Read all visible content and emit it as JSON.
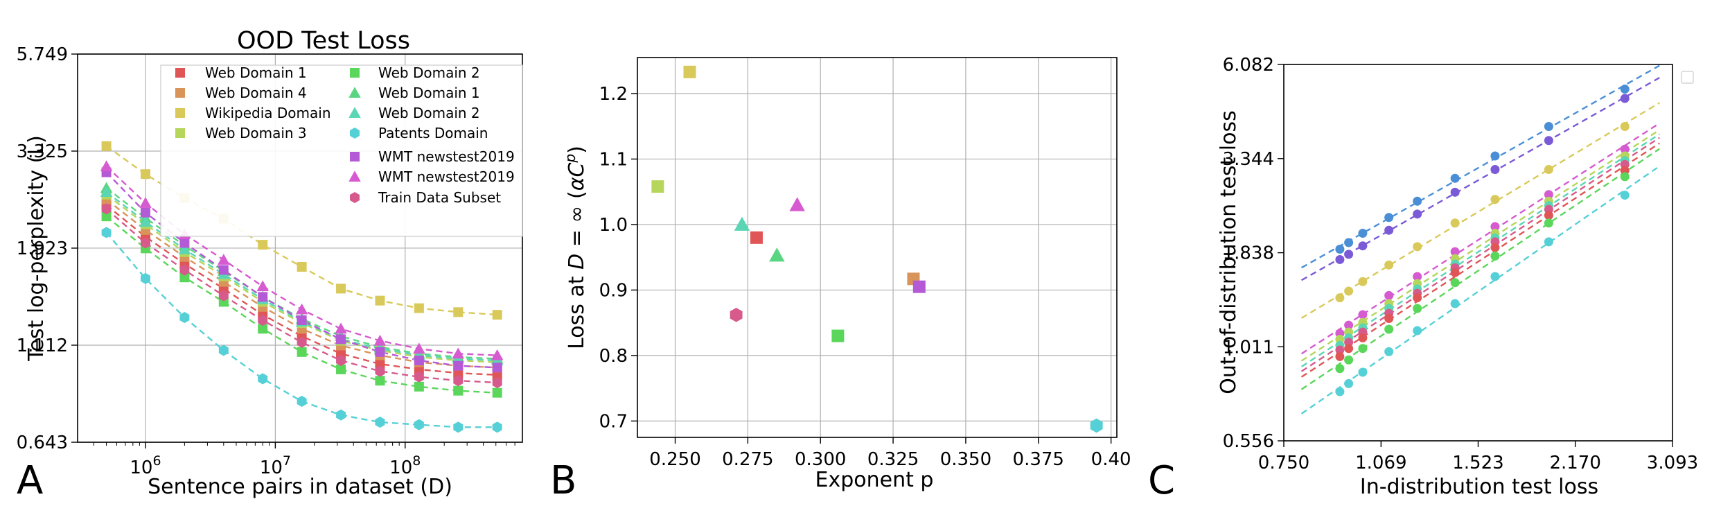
{
  "panel_letters": [
    "A",
    "B",
    "C"
  ],
  "chart_data": [
    {
      "panel": "A",
      "type": "line",
      "title": "OOD Test Loss",
      "xlabel": "Sentence pairs in dataset (D)",
      "ylabel": "Test log-perplexity (L)",
      "xscale": "log",
      "yscale": "log",
      "xlim": [
        300000,
        800000000
      ],
      "ylim": [
        0.643,
        5.749
      ],
      "xtick_values": [
        1000000,
        10000000,
        100000000
      ],
      "xtick_labels": [
        "10^6",
        "10^7",
        "10^8"
      ],
      "ytick_values": [
        0.643,
        1.112,
        1.923,
        3.325,
        5.749
      ],
      "ytick_labels": [
        "0.643",
        "1.112",
        "1.923",
        "3.325",
        "5.749"
      ],
      "grid": true,
      "legend_placement": "top-right",
      "x": [
        500000,
        1000000,
        2000000,
        4000000,
        8000000,
        16000000,
        32000000,
        64000000,
        128000000,
        256000000,
        512000000
      ],
      "series": [
        {
          "name": "Web Domain 1",
          "color": "#e05555",
          "marker": "square",
          "values": [
            2.45,
            2.05,
            1.76,
            1.53,
            1.32,
            1.17,
            1.06,
            1.0,
            0.97,
            0.95,
            0.94
          ]
        },
        {
          "name": "Web Domain 4",
          "color": "#d9945a",
          "marker": "square",
          "values": [
            2.53,
            2.13,
            1.83,
            1.59,
            1.38,
            1.22,
            1.11,
            1.05,
            1.01,
            0.99,
            0.98
          ]
        },
        {
          "name": "Wikipedia Domain",
          "color": "#d9c95a",
          "marker": "square",
          "values": [
            3.42,
            2.92,
            2.55,
            2.27,
            1.96,
            1.73,
            1.53,
            1.43,
            1.37,
            1.34,
            1.32
          ]
        },
        {
          "name": "Web Domain 3",
          "color": "#b5d65a",
          "marker": "square",
          "values": [
            2.6,
            2.2,
            1.88,
            1.64,
            1.42,
            1.26,
            1.14,
            1.08,
            1.04,
            1.02,
            1.01
          ]
        },
        {
          "name": "Web Domain 2",
          "color": "#5ad65a",
          "marker": "square",
          "values": [
            2.3,
            1.92,
            1.63,
            1.42,
            1.22,
            1.07,
            0.97,
            0.91,
            0.88,
            0.86,
            0.85
          ]
        },
        {
          "name": "Web Domain 1",
          "color": "#5ad682",
          "marker": "triangle",
          "values": [
            2.7,
            2.28,
            1.95,
            1.69,
            1.46,
            1.29,
            1.17,
            1.1,
            1.06,
            1.04,
            1.03
          ]
        },
        {
          "name": "Web Domain 2",
          "color": "#5ad6b5",
          "marker": "triangle",
          "values": [
            2.64,
            2.23,
            1.91,
            1.66,
            1.44,
            1.27,
            1.15,
            1.09,
            1.05,
            1.03,
            1.02
          ]
        },
        {
          "name": "Patents Domain",
          "color": "#55d0d6",
          "marker": "hexagon",
          "values": [
            2.1,
            1.62,
            1.3,
            1.08,
            0.92,
            0.81,
            0.75,
            0.72,
            0.71,
            0.7,
            0.7
          ]
        },
        {
          "name": "WMT newstest2019",
          "color": "#b55ad6",
          "marker": "square",
          "values": [
            2.95,
            2.35,
            1.98,
            1.7,
            1.46,
            1.28,
            1.15,
            1.07,
            1.02,
            0.99,
            0.98
          ]
        },
        {
          "name": "WMT newstest2019",
          "color": "#d65ad0",
          "marker": "triangle",
          "values": [
            3.05,
            2.48,
            2.08,
            1.8,
            1.55,
            1.36,
            1.22,
            1.14,
            1.09,
            1.06,
            1.05
          ]
        },
        {
          "name": "Train Data Subset",
          "color": "#d65a8c",
          "marker": "hexagon",
          "values": [
            2.4,
            1.98,
            1.7,
            1.47,
            1.28,
            1.13,
            1.02,
            0.96,
            0.93,
            0.91,
            0.9
          ]
        }
      ]
    },
    {
      "panel": "B",
      "type": "scatter",
      "xlabel": "Exponent p",
      "ylabel": "Loss at D = ∞ (αC^p)",
      "xlim": [
        0.237,
        0.402
      ],
      "ylim": [
        0.675,
        1.255
      ],
      "xtick_values": [
        0.25,
        0.275,
        0.3,
        0.325,
        0.35,
        0.375,
        0.4
      ],
      "xtick_labels": [
        "0.250",
        "0.275",
        "0.300",
        "0.325",
        "0.350",
        "0.375",
        "0.40"
      ],
      "ytick_values": [
        0.7,
        0.8,
        0.9,
        1.0,
        1.1,
        1.2
      ],
      "ytick_labels": [
        "0.7",
        "0.8",
        "0.9",
        "1.0",
        "1.1",
        "1.2"
      ],
      "grid": true,
      "points": [
        {
          "x": 0.278,
          "y": 0.98,
          "color": "#e05555",
          "marker": "square"
        },
        {
          "x": 0.332,
          "y": 0.917,
          "color": "#d9945a",
          "marker": "square"
        },
        {
          "x": 0.255,
          "y": 1.233,
          "color": "#d9c95a",
          "marker": "square"
        },
        {
          "x": 0.244,
          "y": 1.058,
          "color": "#b5d65a",
          "marker": "square"
        },
        {
          "x": 0.306,
          "y": 0.83,
          "color": "#5ad65a",
          "marker": "square"
        },
        {
          "x": 0.285,
          "y": 0.953,
          "color": "#5ad682",
          "marker": "triangle"
        },
        {
          "x": 0.273,
          "y": 1.0,
          "color": "#5ad6b5",
          "marker": "triangle"
        },
        {
          "x": 0.395,
          "y": 0.693,
          "color": "#55d0d6",
          "marker": "hexagon"
        },
        {
          "x": 0.334,
          "y": 0.905,
          "color": "#b55ad6",
          "marker": "square"
        },
        {
          "x": 0.292,
          "y": 1.03,
          "color": "#d65ad0",
          "marker": "triangle"
        },
        {
          "x": 0.271,
          "y": 0.862,
          "color": "#d65a8c",
          "marker": "hexagon"
        }
      ]
    },
    {
      "panel": "C",
      "type": "scatter",
      "xlabel": "In-distribution test loss",
      "ylabel": "Out-of-distribution test loss",
      "xscale": "log",
      "yscale": "log",
      "xlim": [
        0.75,
        3.093
      ],
      "ylim": [
        0.556,
        6.082
      ],
      "xtick_values": [
        0.75,
        1.069,
        1.523,
        2.17,
        3.093
      ],
      "xtick_labels": [
        "0.750",
        "1.069",
        "1.523",
        "2.170",
        "3.093"
      ],
      "ytick_values": [
        0.556,
        1.011,
        1.838,
        3.344,
        6.082
      ],
      "ytick_labels": [
        "0.556",
        "1.011",
        "1.838",
        "3.344",
        "6.082"
      ],
      "grid": false,
      "legend_placement": "outside-right (empty)",
      "fit_xlim": [
        0.8,
        2.95
      ],
      "x": [
        0.92,
        0.95,
        1.0,
        1.1,
        1.22,
        1.4,
        1.62,
        1.97,
        2.6
      ],
      "series": [
        {
          "color": "#4a8fd6",
          "marker": "circle",
          "values": [
            1.88,
            1.96,
            2.08,
            2.3,
            2.55,
            2.95,
            3.4,
            4.1,
            5.2
          ]
        },
        {
          "color": "#7a5ad6",
          "marker": "circle",
          "values": [
            1.76,
            1.82,
            1.92,
            2.12,
            2.35,
            2.7,
            3.12,
            3.75,
            4.9
          ]
        },
        {
          "color": "#d9c95a",
          "marker": "circle",
          "values": [
            1.38,
            1.44,
            1.53,
            1.7,
            1.91,
            2.22,
            2.58,
            3.12,
            4.1
          ]
        },
        {
          "color": "#d65ad0",
          "marker": "circle",
          "values": [
            1.1,
            1.16,
            1.24,
            1.4,
            1.58,
            1.85,
            2.17,
            2.66,
            3.55
          ]
        },
        {
          "color": "#b5d65a",
          "marker": "circle",
          "values": [
            1.06,
            1.11,
            1.18,
            1.33,
            1.51,
            1.77,
            2.08,
            2.55,
            3.4
          ]
        },
        {
          "color": "#5ad6b5",
          "marker": "circle",
          "values": [
            1.02,
            1.07,
            1.14,
            1.29,
            1.46,
            1.71,
            2.02,
            2.48,
            3.3
          ]
        },
        {
          "color": "#d65a8c",
          "marker": "circle",
          "values": [
            0.99,
            1.04,
            1.11,
            1.25,
            1.42,
            1.67,
            1.97,
            2.42,
            3.22
          ]
        },
        {
          "color": "#e05555",
          "marker": "circle",
          "values": [
            0.95,
            1.0,
            1.07,
            1.21,
            1.38,
            1.62,
            1.9,
            2.33,
            3.1
          ]
        },
        {
          "color": "#5ad65a",
          "marker": "circle",
          "values": [
            0.88,
            0.93,
            1.0,
            1.13,
            1.29,
            1.52,
            1.8,
            2.22,
            2.98
          ]
        },
        {
          "color": "#55d0d6",
          "marker": "circle",
          "values": [
            0.76,
            0.8,
            0.86,
            0.98,
            1.12,
            1.33,
            1.58,
            1.97,
            2.65
          ]
        }
      ]
    }
  ]
}
